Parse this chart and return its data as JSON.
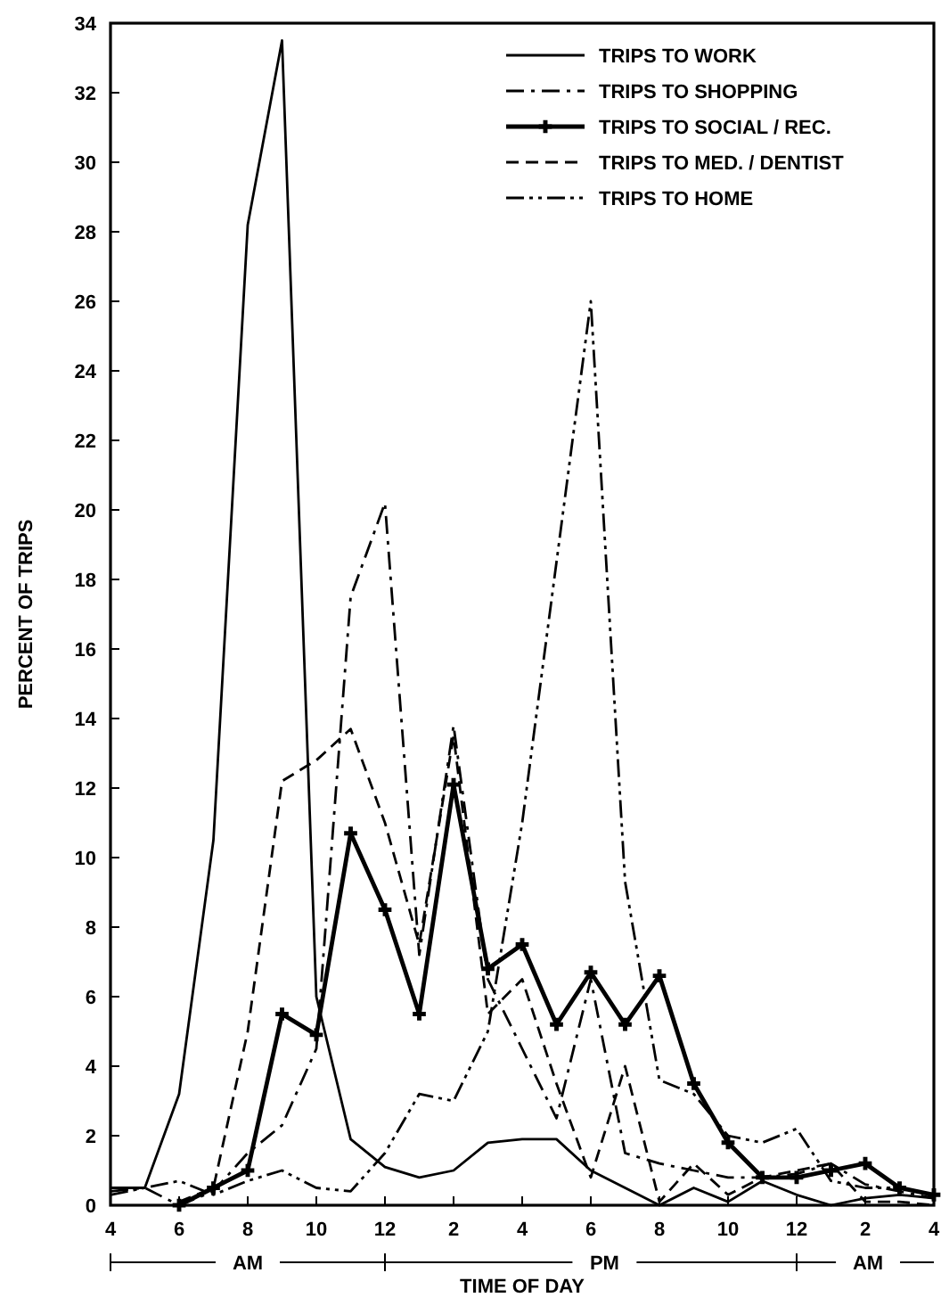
{
  "chart_data": {
    "type": "line",
    "xlabel": "TIME OF DAY",
    "ylabel": "PERCENT OF TRIPS",
    "categories": [
      "4",
      null,
      "6",
      null,
      "8",
      null,
      "10",
      null,
      "12",
      null,
      "2",
      null,
      "4",
      null,
      "6",
      null,
      "8",
      null,
      "10",
      null,
      "12",
      null,
      "2",
      null,
      "4"
    ],
    "ylim": [
      0,
      34
    ],
    "yticks": [
      0,
      2,
      4,
      6,
      8,
      10,
      12,
      14,
      16,
      18,
      20,
      22,
      24,
      26,
      28,
      30,
      32,
      34
    ],
    "grid": false,
    "legend": "top right",
    "marker": "none",
    "series": [
      {
        "name": "TRIPS TO WORK",
        "color": "#000000",
        "line_style": "solid",
        "values": [
          0.5,
          0.5,
          3.2,
          10.5,
          28.2,
          33.5,
          6,
          1.9,
          1.1,
          0.8,
          1.0,
          1.8,
          1.9,
          1.9,
          1.0,
          0.5,
          0,
          0.5,
          0.1,
          0.7,
          0.3,
          0,
          0.2,
          0.3,
          0.2
        ]
      },
      {
        "name": "TRIPS TO SHOPPING",
        "color": "#000000",
        "line_style": "dashdot",
        "values": [
          0.4,
          0.5,
          0,
          0.4,
          1.5,
          2.3,
          4.5,
          17.5,
          20.2,
          7.2,
          13.8,
          6.5,
          4.5,
          2.5,
          6.5,
          1.5,
          1.2,
          1.0,
          0.8,
          0.8,
          0.9,
          1.2,
          0.6,
          0.4,
          0.2
        ]
      },
      {
        "name": "TRIPS TO SOCIAL / REC.",
        "color": "#000000",
        "line_style": "solid",
        "marker": "cross",
        "values": [
          null,
          null,
          0,
          0.5,
          1,
          5.5,
          4.9,
          10.7,
          8.5,
          5.5,
          12.1,
          6.8,
          7.5,
          5.2,
          6.7,
          5.2,
          6.6,
          3.5,
          1.8,
          0.8,
          0.8,
          1.0,
          1.2,
          0.5,
          0.3
        ]
      },
      {
        "name": "TRIPS TO MED. / DENTIST",
        "color": "#000000",
        "line_style": "dashed",
        "values": [
          null,
          null,
          0.1,
          0.5,
          5,
          12.2,
          12.8,
          13.7,
          11,
          7.5,
          13.5,
          5.5,
          6.5,
          3.5,
          0.8,
          4,
          0.1,
          1.2,
          0.3,
          0.8,
          1,
          1.2,
          0.1,
          0.1,
          0
        ]
      },
      {
        "name": "TRIPS TO HOME",
        "color": "#000000",
        "line_style": "dashdotdot",
        "values": [
          0.3,
          0.5,
          0.7,
          0.3,
          0.7,
          1.0,
          0.5,
          0.4,
          1.5,
          3.2,
          3.0,
          5,
          11,
          18.5,
          26,
          9.3,
          3.6,
          3.2,
          2,
          1.8,
          2.2,
          0.7,
          0.5,
          0.5,
          0.3
        ]
      }
    ],
    "annotations": [
      "AM",
      "PM",
      "AM"
    ]
  }
}
